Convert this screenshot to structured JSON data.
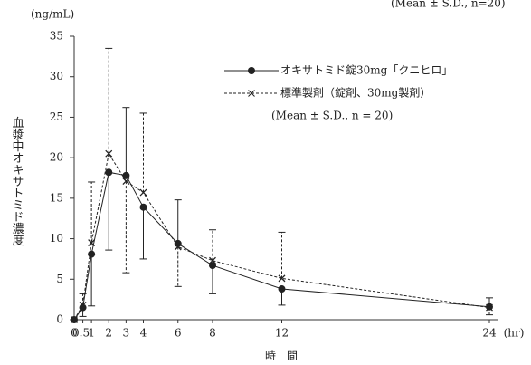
{
  "header_note": "(Mean ± S.D., n=20)",
  "chart_data": {
    "type": "line",
    "y_unit": "(ng/mL)",
    "ylabel": "血漿中オキサトミド濃度",
    "xlabel": "時　間",
    "x_unit": "(hr)",
    "x": [
      0,
      0.5,
      1,
      2,
      3,
      4,
      6,
      8,
      12,
      24
    ],
    "xlim": [
      0,
      24
    ],
    "xticks": [
      0,
      0.5,
      1,
      2,
      3,
      4,
      6,
      8,
      12,
      24
    ],
    "ylim": [
      0,
      35
    ],
    "yticks": [
      0,
      5,
      10,
      15,
      20,
      25,
      30,
      35
    ],
    "series": [
      {
        "name": "オキサトミド錠30mg「クニヒロ」",
        "color": "#222",
        "marker": "circle",
        "dash": false,
        "values": [
          0,
          1.5,
          8.1,
          18.2,
          17.8,
          13.9,
          9.4,
          6.7,
          3.8,
          1.6
        ],
        "errors": [
          null,
          1.1,
          6.4,
          9.6,
          8.4,
          6.4,
          5.4,
          3.5,
          2.0,
          1.1
        ],
        "error_sides": [
          null,
          "down",
          "down",
          "down",
          "up",
          "down",
          "up",
          "down",
          "down",
          "up"
        ]
      },
      {
        "name": "標準製剤（錠剤、30mg製剤）",
        "color": "#222",
        "marker": "cross",
        "dash": true,
        "values": [
          0,
          1.8,
          9.5,
          20.5,
          17.1,
          15.7,
          9.0,
          7.3,
          5.1,
          1.5
        ],
        "errors": [
          null,
          1.4,
          7.5,
          13.0,
          11.3,
          9.8,
          4.9,
          3.8,
          5.7,
          0.9
        ],
        "error_sides": [
          null,
          "up",
          "up",
          "up",
          "down",
          "up",
          "down",
          "up",
          "up",
          "down"
        ]
      }
    ],
    "legend_note": "(Mean ± S.D., n = 20)"
  }
}
